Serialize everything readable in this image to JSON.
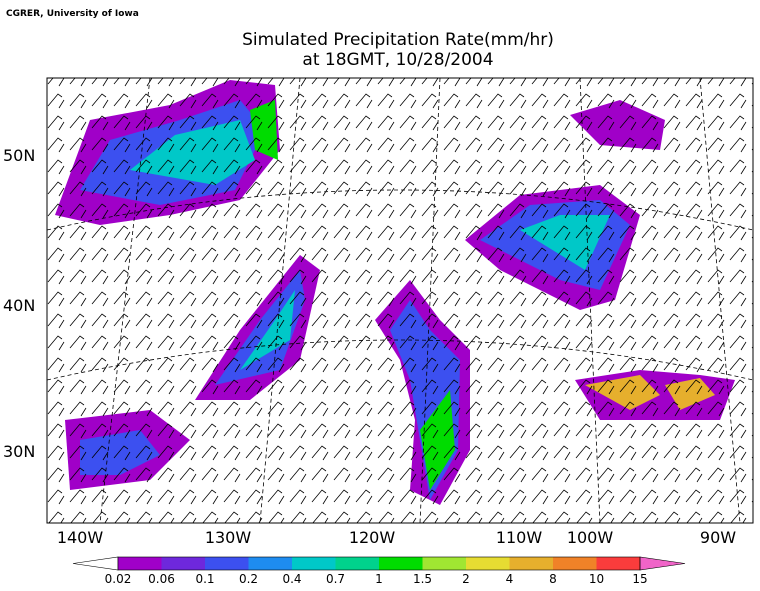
{
  "credit": "CGRER, University of Iowa",
  "title": [
    "Simulated Precipitation Rate(mm/hr)",
    "at 18GMT, 10/28/2004"
  ],
  "lon_labels": [
    "140W",
    "130W",
    "120W",
    "110W",
    "100W",
    "90W"
  ],
  "lat_labels": [
    "50N",
    "40N",
    "30N"
  ],
  "colorbar": {
    "levels": [
      0.02,
      0.06,
      0.1,
      0.2,
      0.4,
      0.7,
      1,
      1.5,
      2,
      4,
      8,
      10,
      15
    ],
    "colors": [
      "#a000c8",
      "#6e28dc",
      "#3c50f0",
      "#1e8cf0",
      "#00c8c8",
      "#00d28c",
      "#00dc00",
      "#a0e632",
      "#e6dc32",
      "#e6af2d",
      "#f08228",
      "#fa3c3c"
    ],
    "under_color": "#ffffff",
    "over_color": "#f064c8"
  }
}
